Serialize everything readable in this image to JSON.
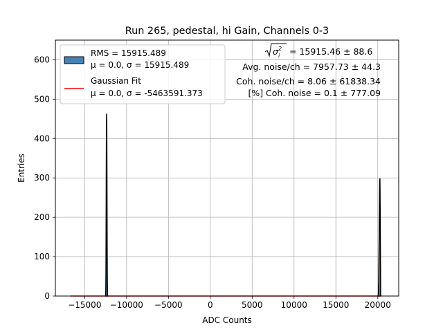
{
  "chart_data": {
    "type": "histogram",
    "title": "Run 265, pedestal, hi Gain, Channels 0-3",
    "xlabel": "ADC Counts",
    "ylabel": "Entries",
    "xlim": [
      -18500,
      22500
    ],
    "ylim": [
      0,
      650
    ],
    "x_ticks": [
      -15000,
      -10000,
      -5000,
      0,
      5000,
      10000,
      15000,
      20000
    ],
    "x_tick_labels": [
      "−15000",
      "−10000",
      "−5000",
      "0",
      "5000",
      "10000",
      "15000",
      "20000"
    ],
    "y_ticks": [
      0,
      100,
      200,
      300,
      400,
      500,
      600
    ],
    "y_tick_labels": [
      "0",
      "100",
      "200",
      "300",
      "400",
      "500",
      "600"
    ],
    "grid": true,
    "legend_position": "top-left",
    "histogram": {
      "name_line1": "RMS = 15915.489",
      "name_line2": "μ = 0.0, σ = 15915.489",
      "color": "#4682b4",
      "peaks": [
        {
          "x": [
            -12500,
            -12480,
            -12460,
            -12440,
            -12420,
            -12400,
            -12380,
            -12360,
            -12340,
            -12320,
            -12300,
            -12280,
            -12260
          ],
          "y": [
            0,
            15,
            60,
            180,
            330,
            440,
            462,
            430,
            300,
            150,
            50,
            10,
            0
          ]
        },
        {
          "x": [
            20050,
            20080,
            20110,
            20140,
            20170,
            20200,
            20230,
            20260,
            20290,
            20320,
            20350
          ],
          "y": [
            0,
            10,
            40,
            100,
            160,
            230,
            290,
            298,
            220,
            90,
            0
          ]
        }
      ]
    },
    "fit": {
      "name_line1": "Gaussian Fit",
      "name_line2": "μ = 0.0, σ = -5463591.373",
      "color": "#ff0000",
      "x": [
        -16700,
        20300
      ],
      "y": [
        0,
        0
      ]
    },
    "annotations": {
      "sqrt_sigma_value": " = 15915.46 ± 88.6",
      "avg_noise": "Avg. noise/ch = 7957.73 ± 44.3",
      "coh_noise": "Coh. noise/ch = 8.06 ± 61838.34",
      "pct_coh_noise": "[%] Coh. noise = 0.1 ± 777.09"
    }
  }
}
